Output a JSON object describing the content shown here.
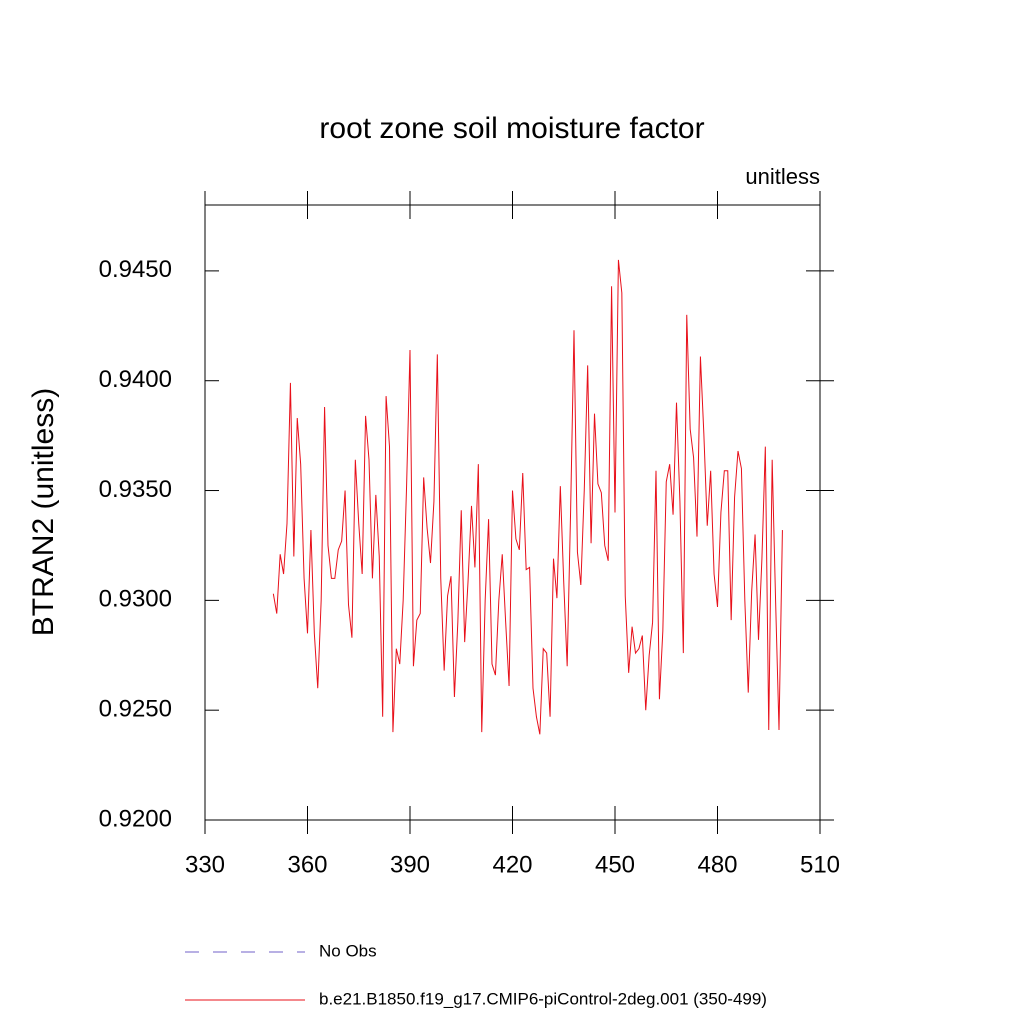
{
  "chart_data": {
    "type": "line",
    "title": "root zone soil moisture factor",
    "subtitle": "unitless",
    "ylabel": "BTRAN2  (unitless)",
    "xlim": [
      330,
      510
    ],
    "xticks": [
      330,
      360,
      390,
      420,
      450,
      480,
      510
    ],
    "ylim": [
      0.92,
      0.948
    ],
    "yticks": [
      {
        "value": 0.92,
        "label": "0.9200"
      },
      {
        "value": 0.925,
        "label": "0.9250"
      },
      {
        "value": 0.93,
        "label": "0.9300"
      },
      {
        "value": 0.935,
        "label": "0.9350"
      },
      {
        "value": 0.94,
        "label": "0.9400"
      },
      {
        "value": 0.945,
        "label": "0.9450"
      }
    ],
    "legend_only": [
      {
        "name": "No Obs",
        "color": "#7060c8",
        "dashed": true
      }
    ],
    "x": [
      350,
      351,
      352,
      353,
      354,
      355,
      356,
      357,
      358,
      359,
      360,
      361,
      362,
      363,
      364,
      365,
      366,
      367,
      368,
      369,
      370,
      371,
      372,
      373,
      374,
      375,
      376,
      377,
      378,
      379,
      380,
      381,
      382,
      383,
      384,
      385,
      386,
      387,
      388,
      389,
      390,
      391,
      392,
      393,
      394,
      395,
      396,
      397,
      398,
      399,
      400,
      401,
      402,
      403,
      404,
      405,
      406,
      407,
      408,
      409,
      410,
      411,
      412,
      413,
      414,
      415,
      416,
      417,
      418,
      419,
      420,
      421,
      422,
      423,
      424,
      425,
      426,
      427,
      428,
      429,
      430,
      431,
      432,
      433,
      434,
      435,
      436,
      437,
      438,
      439,
      440,
      441,
      442,
      443,
      444,
      445,
      446,
      447,
      448,
      449,
      450,
      451,
      452,
      453,
      454,
      455,
      456,
      457,
      458,
      459,
      460,
      461,
      462,
      463,
      464,
      465,
      466,
      467,
      468,
      469,
      470,
      471,
      472,
      473,
      474,
      475,
      476,
      477,
      478,
      479,
      480,
      481,
      482,
      483,
      484,
      485,
      486,
      487,
      488,
      489,
      490,
      491,
      492,
      493,
      494,
      495,
      496,
      497,
      498,
      499
    ],
    "series": [
      {
        "name": "b.e21.B1850.f19_g17.CMIP6-piControl-2deg.001 (350-499)",
        "color": "#e8101a",
        "values": [
          0.9303,
          0.9294,
          0.9321,
          0.9312,
          0.9335,
          0.9399,
          0.932,
          0.9383,
          0.9362,
          0.931,
          0.9285,
          0.9332,
          0.9285,
          0.926,
          0.93,
          0.9388,
          0.9325,
          0.931,
          0.931,
          0.9323,
          0.9327,
          0.935,
          0.9298,
          0.9283,
          0.9364,
          0.9335,
          0.9312,
          0.9384,
          0.9364,
          0.931,
          0.9348,
          0.932,
          0.9247,
          0.9393,
          0.937,
          0.924,
          0.9278,
          0.9271,
          0.93,
          0.9352,
          0.9414,
          0.927,
          0.9291,
          0.9294,
          0.9356,
          0.9333,
          0.9317,
          0.9345,
          0.9412,
          0.931,
          0.9268,
          0.9302,
          0.9311,
          0.9256,
          0.929,
          0.9341,
          0.9281,
          0.9309,
          0.9343,
          0.9315,
          0.9362,
          0.924,
          0.93,
          0.9337,
          0.9271,
          0.9266,
          0.93,
          0.9321,
          0.929,
          0.9261,
          0.935,
          0.9328,
          0.9323,
          0.9358,
          0.9314,
          0.9315,
          0.926,
          0.9247,
          0.9239,
          0.9278,
          0.9276,
          0.9247,
          0.9319,
          0.9301,
          0.9352,
          0.9308,
          0.927,
          0.934,
          0.9423,
          0.9322,
          0.9307,
          0.935,
          0.9407,
          0.9326,
          0.9385,
          0.9353,
          0.9349,
          0.9325,
          0.9318,
          0.9443,
          0.934,
          0.9455,
          0.944,
          0.9302,
          0.9267,
          0.9288,
          0.9276,
          0.9278,
          0.9284,
          0.925,
          0.9275,
          0.929,
          0.9359,
          0.9255,
          0.9286,
          0.9354,
          0.9362,
          0.9339,
          0.939,
          0.9345,
          0.9276,
          0.943,
          0.9378,
          0.9365,
          0.9329,
          0.9411,
          0.9376,
          0.9334,
          0.9359,
          0.9312,
          0.9297,
          0.934,
          0.9359,
          0.9359,
          0.9291,
          0.9347,
          0.9368,
          0.936,
          0.93,
          0.9258,
          0.9304,
          0.933,
          0.9282,
          0.9319,
          0.937,
          0.9241,
          0.9364,
          0.93,
          0.9241,
          0.9332
        ]
      }
    ]
  }
}
